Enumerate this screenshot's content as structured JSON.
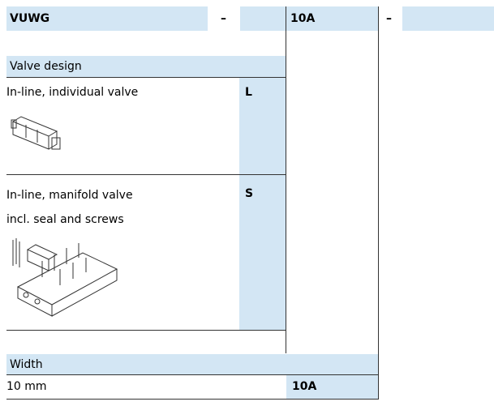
{
  "header": {
    "code": "VUWG",
    "separator_1": "–",
    "size": "10A",
    "separator_2": "–"
  },
  "valve_design": {
    "title": "Valve design",
    "options": [
      {
        "lines": [
          "In-line, individual valve"
        ],
        "code": "L"
      },
      {
        "lines": [
          "In-line, manifold valve",
          "incl. seal and screws"
        ],
        "code": "S"
      }
    ]
  },
  "width": {
    "title": "Width",
    "options": [
      {
        "lines": [
          "10 mm"
        ],
        "code": "10A"
      }
    ]
  }
}
